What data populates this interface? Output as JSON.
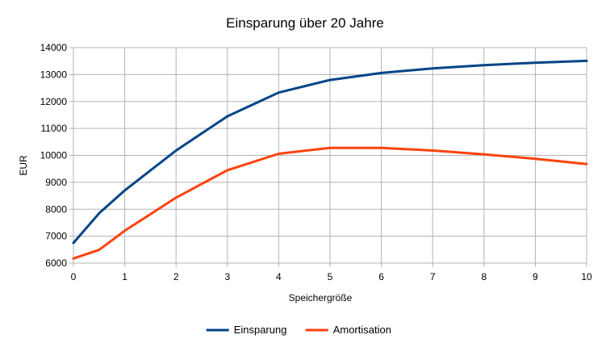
{
  "chart_data": {
    "type": "line",
    "title": "Einsparung über 20 Jahre",
    "xlabel": "Speichergröße",
    "ylabel": "EUR",
    "xlim": [
      0,
      10
    ],
    "ylim": [
      6000,
      14000
    ],
    "x_ticks": [
      "0",
      "1",
      "2",
      "3",
      "4",
      "5",
      "6",
      "7",
      "8",
      "9",
      "10"
    ],
    "y_ticks": [
      "6000",
      "7000",
      "8000",
      "9000",
      "10000",
      "11000",
      "12000",
      "13000",
      "14000"
    ],
    "grid": true,
    "legend_position": "bottom",
    "x": [
      0,
      0.5,
      1,
      2,
      3,
      4,
      5,
      6,
      7,
      8,
      9,
      10
    ],
    "series": [
      {
        "name": "Einsparung",
        "color": "#004586",
        "values": [
          6750,
          7850,
          8700,
          10180,
          11450,
          12330,
          12800,
          13060,
          13230,
          13350,
          13440,
          13510
        ]
      },
      {
        "name": "Amortisation",
        "color": "#ff420e",
        "values": [
          6170,
          6490,
          7200,
          8430,
          9450,
          10060,
          10280,
          10280,
          10180,
          10040,
          9870,
          9680
        ]
      }
    ]
  }
}
